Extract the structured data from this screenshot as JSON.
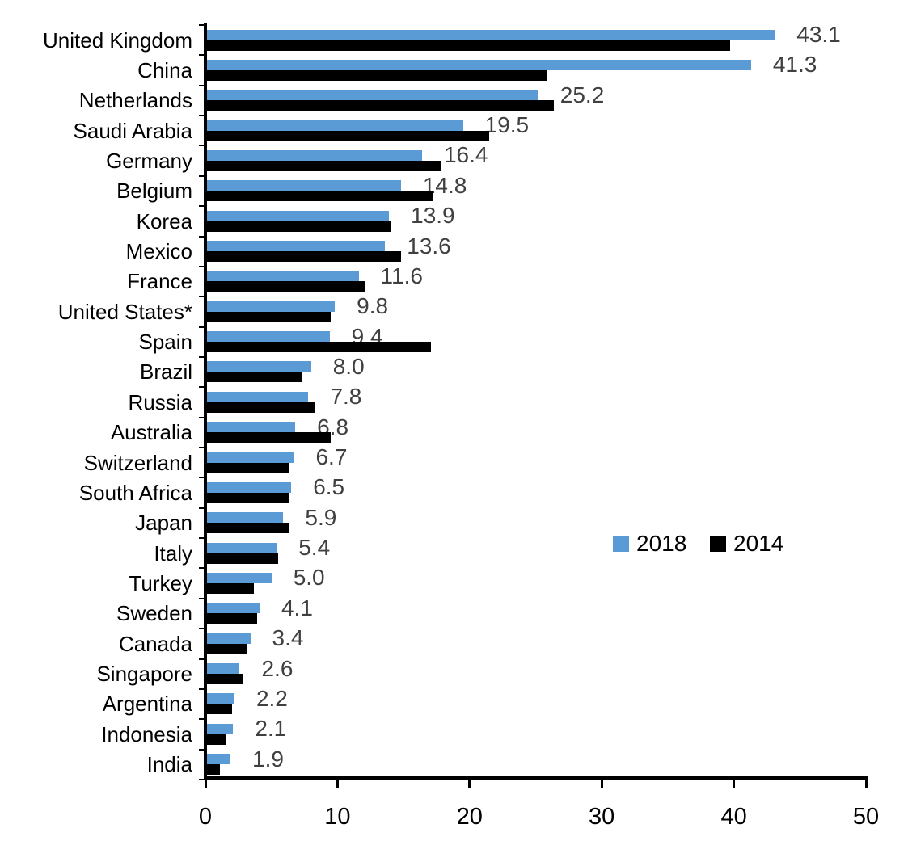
{
  "chart_data": {
    "type": "bar",
    "orientation": "horizontal",
    "title": "",
    "xlabel": "",
    "ylabel": "",
    "categories": [
      "United Kingdom",
      "China",
      "Netherlands",
      "Saudi Arabia",
      "Germany",
      "Belgium",
      "Korea",
      "Mexico",
      "France",
      "United States*",
      "Spain",
      "Brazil",
      "Russia",
      "Australia",
      "Switzerland",
      "South Africa",
      "Japan",
      "Italy",
      "Turkey",
      "Sweden",
      "Canada",
      "Singapore",
      "Argentina",
      "Indonesia",
      "India"
    ],
    "series": [
      {
        "name": "2018",
        "color": "#5B9BD5",
        "values": [
          43.1,
          41.3,
          25.2,
          19.5,
          16.4,
          14.8,
          13.9,
          13.6,
          11.6,
          9.8,
          9.4,
          8.0,
          7.8,
          6.8,
          6.7,
          6.5,
          5.9,
          5.4,
          5.0,
          4.1,
          3.4,
          2.6,
          2.2,
          2.1,
          1.9
        ]
      },
      {
        "name": "2014",
        "color": "#000000",
        "values": [
          39.7,
          25.9,
          26.4,
          21.5,
          17.9,
          17.2,
          14.1,
          14.8,
          12.1,
          9.5,
          17.1,
          7.3,
          8.3,
          9.5,
          6.3,
          6.3,
          6.3,
          5.5,
          3.7,
          3.9,
          3.2,
          2.8,
          2.0,
          1.6,
          1.1
        ]
      }
    ],
    "data_labels": {
      "labeled_series": "2018",
      "values": [
        "43.1",
        "41.3",
        "25.2",
        "19.5",
        "16.4",
        "14.8",
        "13.9",
        "13.6",
        "11.6",
        "9.8",
        "9.4",
        "8.0",
        "7.8",
        "6.8",
        "6.7",
        "6.5",
        "5.9",
        "5.4",
        "5.0",
        "4.1",
        "3.4",
        "2.6",
        "2.2",
        "2.1",
        "1.9"
      ]
    },
    "x_ticks": [
      "0",
      "10",
      "20",
      "30",
      "40",
      "50"
    ],
    "xlim": [
      0,
      50
    ],
    "grid": false,
    "legend": {
      "position": "middle-right",
      "entries": [
        {
          "label": "2018",
          "color": "#5B9BD5"
        },
        {
          "label": "2014",
          "color": "#000000"
        }
      ]
    }
  },
  "colors": {
    "background": "#ffffff",
    "axis": "#000000",
    "category_text": "#000000",
    "value_label_text": "#404040",
    "tick_label_text": "#000000",
    "series_2018": "#5B9BD5",
    "series_2014": "#000000"
  }
}
